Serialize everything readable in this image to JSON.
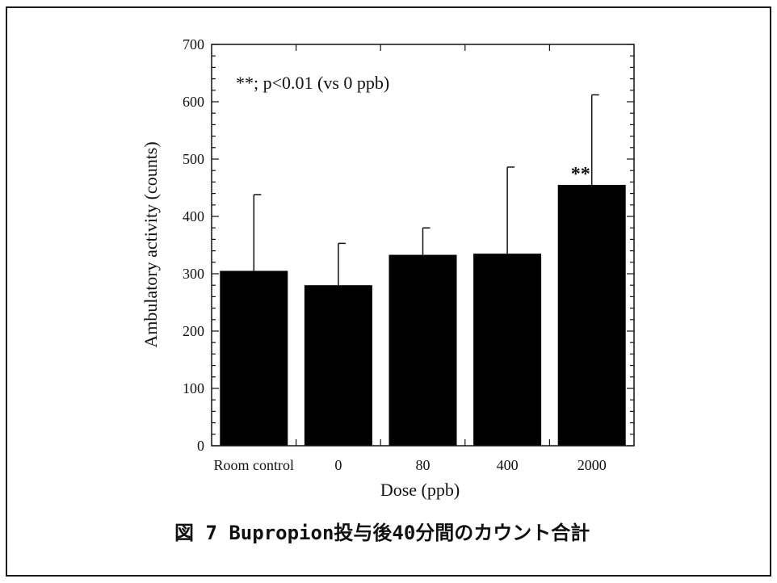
{
  "caption": "図 7 Bupropion投与後40分間のカウント合計",
  "chart_data": {
    "type": "bar",
    "categories": [
      "Room control",
      "0",
      "80",
      "400",
      "2000"
    ],
    "values": [
      305,
      280,
      333,
      335,
      455
    ],
    "error_bars_upper": [
      438,
      353,
      380,
      486,
      612
    ],
    "significance_marks": [
      "",
      "",
      "",
      "",
      "**"
    ],
    "annotation": "**; p<0.01 (vs 0 ppb)",
    "xlabel": "Dose (ppb)",
    "ylabel": "Ambulatory activity (counts)",
    "ylim": [
      0,
      700
    ],
    "yticks": [
      0,
      100,
      200,
      300,
      400,
      500,
      600,
      700
    ],
    "grid": false,
    "colors": {
      "bar": "#000000",
      "axis": "#111111"
    }
  }
}
